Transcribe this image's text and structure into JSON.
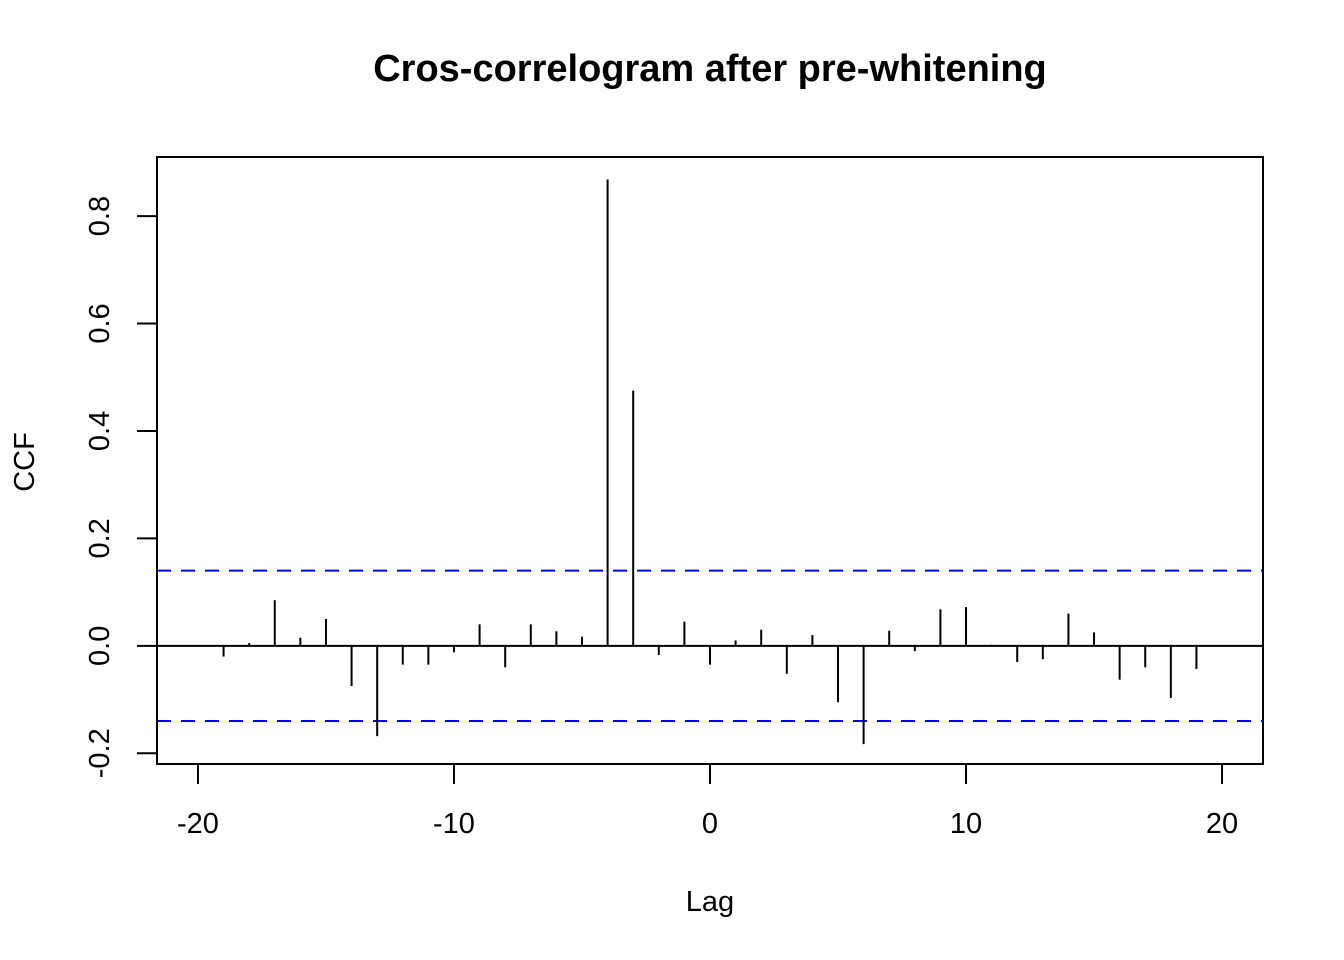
{
  "chart_data": {
    "type": "bar",
    "title": "Cros-correlogram after pre-whitening",
    "xlabel": "Lag",
    "ylabel": "CCF",
    "xlim": [
      -21.6,
      21.6
    ],
    "ylim": [
      -0.22,
      0.91
    ],
    "xticks": [
      -20,
      -10,
      0,
      10,
      20
    ],
    "xtick_labels": [
      "-20",
      "-10",
      "0",
      "10",
      "20"
    ],
    "yticks": [
      -0.2,
      0.0,
      0.2,
      0.4,
      0.6,
      0.8
    ],
    "ytick_labels": [
      "-0.2",
      "0.0",
      "0.2",
      "0.4",
      "0.6",
      "0.8"
    ],
    "grid": false,
    "series": [
      {
        "x": [
          -19,
          -18,
          -17,
          -16,
          -15,
          -14,
          -13,
          -12,
          -11,
          -10,
          -9,
          -8,
          -7,
          -6,
          -5,
          -4,
          -3,
          -2,
          -1,
          0,
          1,
          2,
          3,
          4,
          5,
          6,
          7,
          8,
          9,
          10,
          11,
          12,
          13,
          14,
          15,
          16,
          17,
          18,
          19
        ],
        "values": [
          -0.02,
          0.005,
          0.085,
          0.015,
          0.05,
          -0.075,
          -0.168,
          -0.035,
          -0.035,
          -0.012,
          0.04,
          -0.04,
          0.04,
          0.027,
          0.017,
          0.868,
          0.475,
          -0.017,
          0.045,
          -0.035,
          0.01,
          0.03,
          -0.052,
          0.02,
          -0.105,
          -0.183,
          0.028,
          -0.01,
          0.068,
          0.072,
          0.002,
          -0.03,
          -0.025,
          0.06,
          0.025,
          -0.063,
          -0.04,
          -0.097,
          -0.043
        ],
        "color": "#000000"
      }
    ],
    "reference_lines": [
      {
        "y": 0.0,
        "color": "#000000",
        "style": "solid"
      },
      {
        "y": 0.14,
        "color": "#0000ff",
        "style": "dashed"
      },
      {
        "y": -0.14,
        "color": "#0000ff",
        "style": "dashed"
      }
    ]
  }
}
